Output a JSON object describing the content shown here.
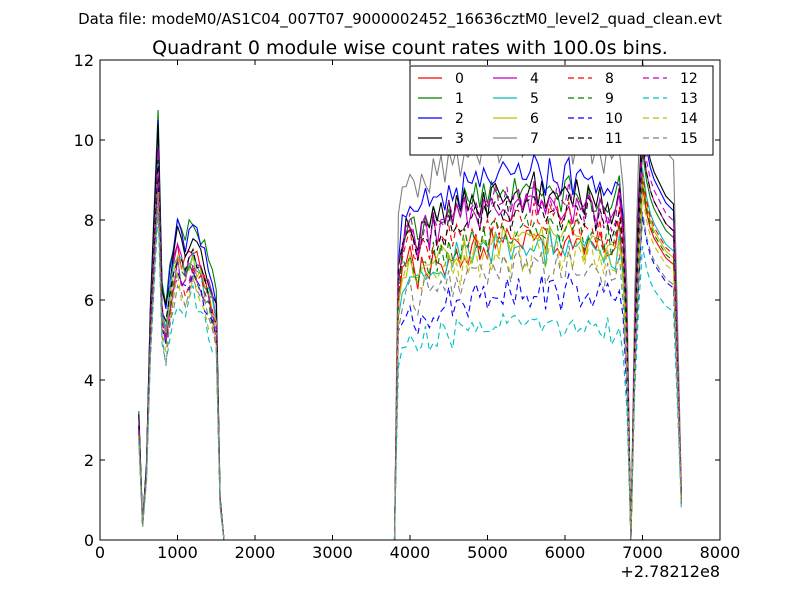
{
  "figure": {
    "suptitle": "Data file: modeM0/AS1C04_007T07_9000002452_16636cztM0_level2_quad_clean.evt"
  },
  "chart_data": {
    "type": "line",
    "title": "Quadrant 0 module wise count rates with 100.0s bins.",
    "xlabel": "",
    "ylabel": "",
    "x_offset_label": "+2.78212e8",
    "xlim": [
      0,
      8000
    ],
    "ylim": [
      0,
      12
    ],
    "x_ticks": [
      0,
      1000,
      2000,
      3000,
      4000,
      5000,
      6000,
      7000,
      8000
    ],
    "y_ticks": [
      0,
      2,
      4,
      6,
      8,
      10,
      12
    ],
    "grid": false,
    "legend_position": "top-right",
    "legend_columns": 4,
    "segments": [
      [
        500,
        550,
        600,
        650,
        700,
        750,
        800,
        850,
        900,
        950,
        1000,
        1050,
        1100,
        1150,
        1200,
        1250,
        1300,
        1350,
        1400,
        1450,
        1500,
        1550,
        1600,
        1650,
        1700
      ],
      [
        1700,
        1800,
        1900,
        2000,
        2100,
        2200,
        2300,
        2400,
        2500,
        2600,
        2700,
        2800,
        2900,
        3000,
        3100,
        3200,
        3300,
        3400,
        3500,
        3600,
        3700,
        3800
      ],
      [
        3800,
        3850,
        3900,
        3950,
        4000,
        4050,
        4100,
        4150,
        4200,
        4250,
        4300,
        4350,
        4400,
        4450,
        4500,
        4550,
        4600,
        4650,
        4700,
        4750,
        4800,
        4850,
        4900,
        4950,
        5000,
        5050,
        5100,
        5150,
        5200,
        5250,
        5300,
        5350,
        5400,
        5450,
        5500,
        5550,
        5600,
        5650,
        5700,
        5750,
        5800,
        5850,
        5900,
        5950,
        6000,
        6050,
        6100,
        6150,
        6200,
        6250,
        6300,
        6350,
        6400,
        6450,
        6500,
        6550,
        6600,
        6650,
        6700,
        6750,
        6800,
        6850,
        6900,
        6950,
        7000,
        7050,
        7100,
        7150,
        7200,
        7250,
        7300,
        7350,
        7400,
        7450,
        7500
      ]
    ],
    "segment_shapes": [
      [
        0.3,
        0.04,
        0.18,
        0.55,
        0.78,
        1.0,
        0.6,
        0.7,
        0.82,
        0.9,
        0.95,
        0.92,
        0.9,
        0.93,
        0.95,
        0.92,
        0.9,
        0.86,
        0.82,
        0.78,
        0.72,
        0.1,
        0.0,
        0.0,
        0.0
      ],
      [
        0,
        0,
        0,
        0,
        0,
        0,
        0,
        0,
        0,
        0,
        0,
        0,
        0,
        0,
        0,
        0,
        0,
        0,
        0,
        0,
        0,
        0
      ],
      [
        0.0,
        0.78,
        0.86,
        0.9,
        0.93,
        0.88,
        0.86,
        0.9,
        0.92,
        0.88,
        0.93,
        0.9,
        0.94,
        0.91,
        0.95,
        0.92,
        0.96,
        0.93,
        0.97,
        0.94,
        0.96,
        0.98,
        0.95,
        0.99,
        0.96,
        0.98,
        1.0,
        0.97,
        0.99,
        1.0,
        0.96,
        0.99,
        1.01,
        0.97,
        1.0,
        0.98,
        1.02,
        0.99,
        1.0,
        0.97,
        1.01,
        0.98,
        1.0,
        0.96,
        0.99,
        1.02,
        0.97,
        1.0,
        0.98,
        0.96,
        0.99,
        0.97,
        0.95,
        0.98,
        0.94,
        0.97,
        0.93,
        0.96,
        1.0,
        0.9,
        0.6,
        0.0,
        0.55,
        0.85,
        1.08,
        1.0,
        0.95,
        0.92,
        0.9,
        0.88,
        0.86,
        0.85,
        0.84,
        0.5,
        0.12
      ]
    ],
    "series": [
      {
        "name": "0",
        "color": "#ff0000",
        "dash": "solid",
        "peak": 9.7,
        "level": 7.6,
        "last": 8.2
      },
      {
        "name": "1",
        "color": "#008000",
        "dash": "solid",
        "peak": 10.75,
        "level": 8.8,
        "last": 9.0
      },
      {
        "name": "2",
        "color": "#0000ff",
        "dash": "solid",
        "peak": 10.5,
        "level": 9.2,
        "last": 9.8
      },
      {
        "name": "3",
        "color": "#000000",
        "dash": "solid",
        "peak": 10.4,
        "level": 8.7,
        "last": 10.0
      },
      {
        "name": "4",
        "color": "#bf00bf",
        "dash": "solid",
        "peak": 9.8,
        "level": 8.5,
        "last": 9.2
      },
      {
        "name": "5",
        "color": "#00bfbf",
        "dash": "solid",
        "peak": 9.5,
        "level": 7.4,
        "last": 8.6
      },
      {
        "name": "6",
        "color": "#bfbf00",
        "dash": "solid",
        "peak": 9.3,
        "level": 7.6,
        "last": 8.4
      },
      {
        "name": "7",
        "color": "#808080",
        "dash": "solid",
        "peak": 9.2,
        "level": 10.0,
        "last": 11.3
      },
      {
        "name": "8",
        "color": "#ff0000",
        "dash": "dashed",
        "peak": 9.0,
        "level": 8.0,
        "last": 8.5
      },
      {
        "name": "9",
        "color": "#008000",
        "dash": "dashed",
        "peak": 9.1,
        "level": 7.8,
        "last": 8.3
      },
      {
        "name": "10",
        "color": "#0000ff",
        "dash": "dashed",
        "peak": 8.8,
        "level": 6.3,
        "last": 7.5
      },
      {
        "name": "11",
        "color": "#000000",
        "dash": "dashed",
        "peak": 9.5,
        "level": 8.4,
        "last": 9.2
      },
      {
        "name": "12",
        "color": "#bf00bf",
        "dash": "dashed",
        "peak": 9.2,
        "level": 8.6,
        "last": 9.5
      },
      {
        "name": "13",
        "color": "#00bfbf",
        "dash": "dashed",
        "peak": 8.2,
        "level": 5.5,
        "last": 6.8
      },
      {
        "name": "14",
        "color": "#bfbf00",
        "dash": "dashed",
        "peak": 8.7,
        "level": 7.2,
        "last": 8.0
      },
      {
        "name": "15",
        "color": "#808080",
        "dash": "dashed",
        "peak": 8.5,
        "level": 6.9,
        "last": 7.6
      }
    ]
  }
}
